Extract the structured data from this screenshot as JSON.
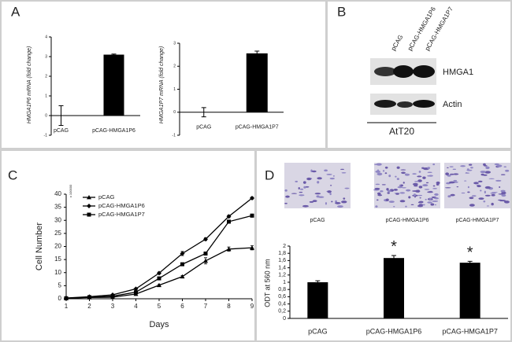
{
  "panels": [
    "A",
    "B",
    "C",
    "D"
  ],
  "blot": {
    "lanes": [
      "pCAG",
      "pCAG-HMGA1P6",
      "pCAG-HMGA1P7"
    ],
    "bands": [
      "HMGA1",
      "Actin"
    ],
    "cell_line": "AtT20"
  },
  "chart_data": [
    {
      "type": "bar",
      "ylabel": "HMGA1P6 mRNA (fold change)",
      "categories": [
        "pCAG",
        "pCAG-HMGA1P6"
      ],
      "values": [
        0,
        3.1
      ],
      "errors": [
        0.5,
        0.03
      ],
      "color": "#000000",
      "ylim": [
        -1,
        4
      ],
      "yticks": [
        -1,
        0,
        1,
        2,
        3,
        4
      ]
    },
    {
      "type": "bar",
      "ylabel": "HMGA1P7 mRNA (fold change)",
      "categories": [
        "pCAG",
        "pCAG-HMGA1P7"
      ],
      "values": [
        0,
        2.56
      ],
      "errors": [
        0.2,
        0.1
      ],
      "color": "#000000",
      "ylim": [
        -1,
        3
      ],
      "yticks": [
        -1,
        0,
        1,
        2,
        3
      ]
    },
    {
      "type": "line",
      "ylabel": "Cell Number",
      "xlabel": "Days",
      "annotation": "x 100000",
      "legend": "upper-left",
      "x": [
        1,
        2,
        3,
        4,
        5,
        6,
        7,
        8,
        9
      ],
      "xlim": [
        1,
        9
      ],
      "xticks": [
        1,
        2,
        3,
        4,
        5,
        6,
        7,
        8,
        9
      ],
      "ylim": [
        0,
        40
      ],
      "yticks": [
        0,
        5,
        10,
        15,
        20,
        25,
        30,
        35,
        40
      ],
      "series": [
        {
          "name": "pCAG",
          "color": "#000000",
          "marker": "triangle",
          "values": [
            0.2,
            0.5,
            0.6,
            1.8,
            5.2,
            8.5,
            14.5,
            19,
            19.5
          ],
          "errors": [
            0.1,
            0.1,
            0.1,
            0.2,
            0.3,
            0.4,
            1.2,
            0.8,
            0.8
          ]
        },
        {
          "name": "pCAG-HMGA1P6",
          "color": "#000000",
          "marker": "diamond",
          "values": [
            0.3,
            0.8,
            1.5,
            3.8,
            9.8,
            17.3,
            22.8,
            31.5,
            38.5
          ],
          "errors": [
            0.1,
            0.1,
            0.2,
            0.3,
            0.4,
            0.8,
            0.5,
            0.5,
            0.4
          ]
        },
        {
          "name": "pCAG-HMGA1P7",
          "color": "#000000",
          "marker": "square",
          "values": [
            0.2,
            0.6,
            1,
            2.5,
            7.8,
            13.2,
            17.3,
            29.5,
            31.8
          ],
          "errors": [
            0.1,
            0.1,
            0.1,
            0.2,
            0.3,
            0.4,
            0.6,
            0.6,
            0.6
          ]
        }
      ]
    },
    {
      "type": "bar",
      "ylabel": "ODT at 560 nm",
      "categories": [
        "pCAG",
        "pCAG-HMGA1P6",
        "pCAG-HMGA1P7"
      ],
      "values": [
        1,
        1.67,
        1.54
      ],
      "errors": [
        0.04,
        0.07,
        0.04
      ],
      "significance": [
        null,
        "*",
        "*"
      ],
      "color": "#000000",
      "ylim": [
        0,
        2
      ],
      "yticks": [
        0,
        {
          "value": 0.2,
          "label": "0,2"
        },
        {
          "value": 0.4,
          "label": "0,4"
        },
        {
          "value": 0.6,
          "label": "0,6"
        },
        {
          "value": 0.8,
          "label": "0,8"
        },
        1,
        {
          "value": 1.2,
          "label": "1,2"
        },
        {
          "value": 1.4,
          "label": "1,4"
        },
        {
          "value": 1.6,
          "label": "1,6"
        },
        {
          "value": 1.8,
          "label": "1,8"
        },
        2
      ]
    }
  ]
}
